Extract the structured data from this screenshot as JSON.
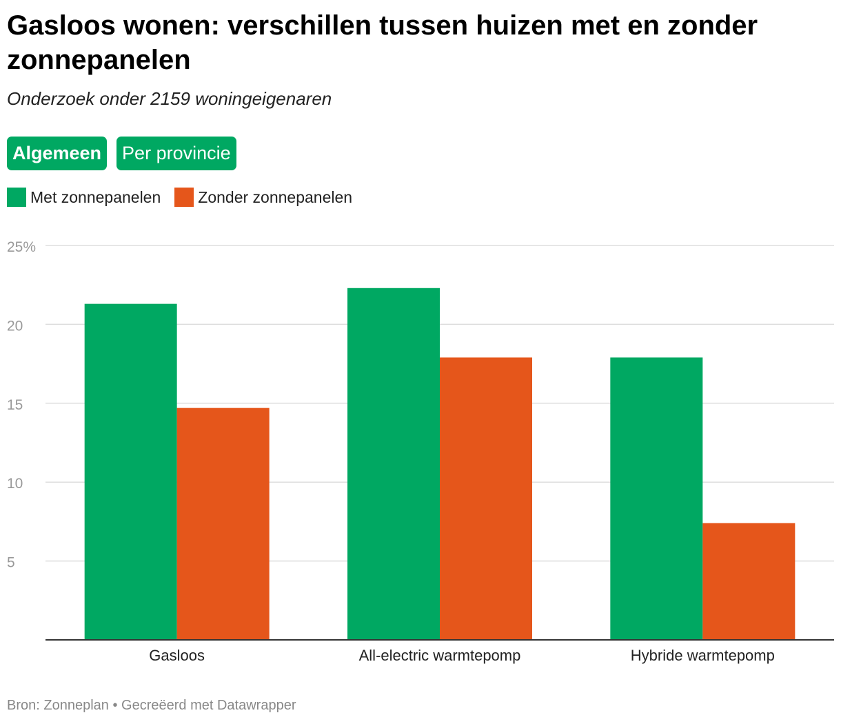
{
  "title": "Gasloos wonen: verschillen tussen huizen met en zonder zonnepanelen",
  "subtitle": "Onderzoek onder 2159 woningeigenaren",
  "buttons": [
    {
      "label": "Algemeen",
      "active": true
    },
    {
      "label": "Per provincie",
      "active": false
    }
  ],
  "footer": {
    "source": "Bron: Zonneplan",
    "separator": "•",
    "credit": "Gecreëerd met Datawrapper"
  },
  "colors": {
    "green": "#00a862",
    "orange": "#e5561b",
    "grid": "#dddddd",
    "tick": "#999999"
  },
  "chart_data": {
    "type": "bar",
    "title": "Gasloos wonen: verschillen tussen huizen met en zonder zonnepanelen",
    "categories": [
      "Gasloos",
      "All-electric warmtepomp",
      "Hybride warmtepomp"
    ],
    "series": [
      {
        "name": "Met zonnepanelen",
        "color": "#00a862",
        "values": [
          21.3,
          22.3,
          17.9
        ]
      },
      {
        "name": "Zonder zonnepanelen",
        "color": "#e5561b",
        "values": [
          14.7,
          17.9,
          7.4
        ]
      }
    ],
    "yticks": [
      5,
      10,
      15,
      20,
      25
    ],
    "ytick_labels": [
      "5",
      "10",
      "15",
      "20",
      "25%"
    ],
    "ylim": [
      0,
      25
    ],
    "xlabel": "",
    "ylabel": "",
    "grid": true,
    "legend": "top-left"
  }
}
